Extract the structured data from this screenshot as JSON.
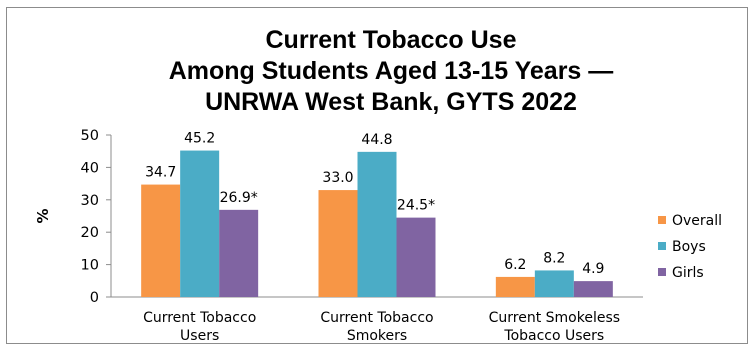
{
  "chart_data": {
    "type": "bar",
    "title_lines": [
      "Current Tobacco Use",
      "Among Students Aged 13-15 Years —",
      "UNRWA West Bank, GYTS 2022"
    ],
    "ylabel": "%",
    "xlabel": "",
    "ylim": [
      0,
      50
    ],
    "yticks": [
      0,
      10,
      20,
      30,
      40,
      50
    ],
    "categories": [
      [
        "Current Tobacco",
        "Users"
      ],
      [
        "Current Tobacco",
        "Smokers"
      ],
      [
        "Current Smokeless",
        "Tobacco Users"
      ]
    ],
    "series": [
      {
        "name": "Overall",
        "color": "#F79646",
        "values": [
          34.7,
          33.0,
          6.2
        ],
        "labels": [
          "34.7",
          "33.0",
          "6.2"
        ]
      },
      {
        "name": "Boys",
        "color": "#4BACC6",
        "values": [
          45.2,
          44.8,
          8.2
        ],
        "labels": [
          "45.2",
          "44.8",
          "8.2"
        ]
      },
      {
        "name": "Girls",
        "color": "#8064A2",
        "values": [
          26.9,
          24.5,
          4.9
        ],
        "labels": [
          "26.9*",
          "24.5*",
          "4.9"
        ]
      }
    ],
    "legend_position": "right",
    "grid": false
  }
}
